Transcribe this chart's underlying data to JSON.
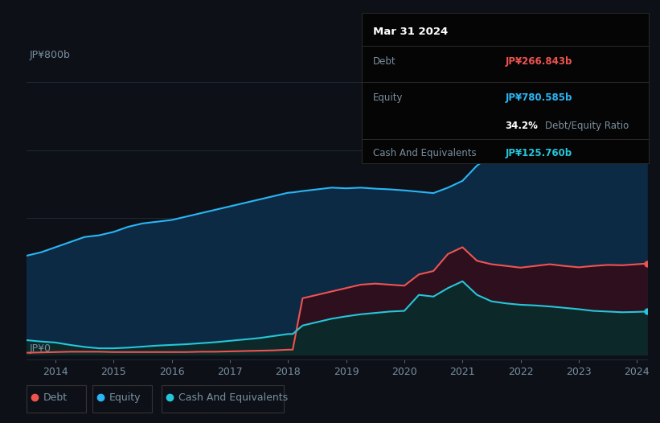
{
  "background_color": "#0d1117",
  "plot_bg_color": "#0d1117",
  "info_box": {
    "date": "Mar 31 2024",
    "debt_label": "Debt",
    "debt_value": "JP¥266.843b",
    "equity_label": "Equity",
    "equity_value": "JP¥780.585b",
    "ratio_value": "34.2%",
    "ratio_label": "Debt/Equity Ratio",
    "cash_label": "Cash And Equivalents",
    "cash_value": "JP¥125.760b"
  },
  "y_label_top": "JP¥800b",
  "y_label_bottom": "JP¥0",
  "years": [
    2013.5,
    2013.75,
    2014.0,
    2014.25,
    2014.5,
    2014.75,
    2015.0,
    2015.25,
    2015.5,
    2015.75,
    2016.0,
    2016.25,
    2016.5,
    2016.75,
    2017.0,
    2017.25,
    2017.5,
    2017.75,
    2018.0,
    2018.08,
    2018.25,
    2018.5,
    2018.75,
    2019.0,
    2019.25,
    2019.5,
    2019.75,
    2020.0,
    2020.25,
    2020.5,
    2020.75,
    2021.0,
    2021.25,
    2021.5,
    2021.75,
    2022.0,
    2022.25,
    2022.5,
    2022.75,
    2023.0,
    2023.25,
    2023.5,
    2023.75,
    2024.0,
    2024.17
  ],
  "equity": [
    290,
    300,
    315,
    330,
    345,
    350,
    360,
    375,
    385,
    390,
    395,
    405,
    415,
    425,
    435,
    445,
    455,
    465,
    475,
    476,
    480,
    485,
    490,
    488,
    490,
    487,
    485,
    482,
    478,
    474,
    490,
    510,
    555,
    585,
    590,
    582,
    595,
    615,
    635,
    655,
    675,
    698,
    730,
    762,
    780
  ],
  "debt": [
    5,
    6,
    7,
    8,
    8,
    8,
    7,
    7,
    7,
    7,
    7,
    7,
    8,
    8,
    9,
    10,
    11,
    12,
    14,
    14,
    165,
    175,
    185,
    195,
    205,
    208,
    205,
    202,
    235,
    245,
    295,
    315,
    275,
    265,
    260,
    255,
    260,
    265,
    260,
    256,
    260,
    263,
    262,
    265,
    267
  ],
  "cash": [
    42,
    38,
    35,
    28,
    22,
    18,
    18,
    20,
    23,
    26,
    28,
    30,
    33,
    36,
    40,
    44,
    48,
    54,
    60,
    60,
    85,
    95,
    105,
    112,
    118,
    122,
    126,
    128,
    175,
    170,
    195,
    215,
    175,
    156,
    150,
    146,
    144,
    141,
    137,
    133,
    128,
    126,
    124,
    125,
    126
  ],
  "equity_color": "#29b6f6",
  "debt_color": "#ef5350",
  "cash_color": "#26c6da",
  "equity_fill_color": "#0d2a45",
  "debt_fill_color": "#2d0f1e",
  "cash_fill_color": "#0d2828",
  "grid_color": "#1c2a38",
  "text_color": "#7a8fa0",
  "x_ticks": [
    2014,
    2015,
    2016,
    2017,
    2018,
    2019,
    2020,
    2021,
    2022,
    2023,
    2024
  ],
  "y_max": 830,
  "y_grid_lines": [
    0,
    200,
    400,
    600,
    800
  ],
  "legend_items": [
    {
      "label": "Debt",
      "color": "#ef5350"
    },
    {
      "label": "Equity",
      "color": "#29b6f6"
    },
    {
      "label": "Cash And Equivalents",
      "color": "#26c6da"
    }
  ]
}
